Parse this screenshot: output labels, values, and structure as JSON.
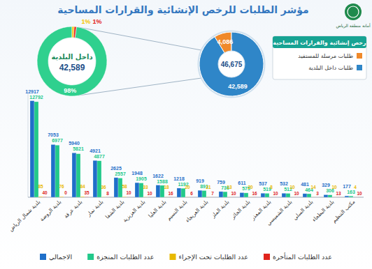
{
  "header": {
    "title": "مؤشر الطلبات للرخص الإنشائية والقرارات المساحية",
    "org": "أمانة منطقة الرياض"
  },
  "chart_data": [
    {
      "type": "pie",
      "legend_title": "رخص إنشائية والقرارات المساحية",
      "categories": [
        "طلبات مرسلة للمستفيد",
        "طلبات داخل البلدية"
      ],
      "values": [
        4086,
        42589
      ],
      "value_labels": [
        "4,086",
        "42,589"
      ],
      "colors": [
        "#f0892a",
        "#2f86c8"
      ],
      "data_labels": true,
      "center_label": "46,675",
      "legend": "right"
    },
    {
      "type": "donut",
      "title": "داخل البلدية",
      "values": [
        98,
        1,
        1
      ],
      "value_labels": [
        "98%",
        "1%",
        "1%"
      ],
      "colors": [
        "#2fd08e",
        "#f5c400",
        "#e3241b"
      ],
      "data_labels": true,
      "center_label": "42,589"
    },
    {
      "type": "bar",
      "categories": [
        "بلدية شمال الرياض",
        "بلدية الروضة",
        "بلدية عرقة",
        "بلدية نمار",
        "بلدية الشفا",
        "بلدية العزيزية",
        "بلدية العليا",
        "بلدية النسيم",
        "بلدية العريجاء",
        "بلدية الملز",
        "بلدية الحائر",
        "بلدية المعذر",
        "بلدية الشميسي",
        "بلدية السلي",
        "بلدية البطحاء",
        "مكتب التنظيم"
      ],
      "series": [
        {
          "name": "الاجمالي",
          "color": "#1f6fc9",
          "values": [
            12917,
            7053,
            5940,
            4921,
            2625,
            1948,
            1622,
            1218,
            919,
            759,
            611,
            537,
            532,
            481,
            329,
            177
          ]
        },
        {
          "name": "عدد الطلبات المنجزة",
          "color": "#22c98a",
          "values": [
            12792,
            6977,
            5821,
            4877,
            2557,
            1905,
            1588,
            1192,
            891,
            736,
            575,
            519,
            512,
            464,
            306,
            163
          ]
        },
        {
          "name": "عدد الطلبات تحت الإجراء",
          "color": "#e8b900",
          "values": [
            85,
            76,
            84,
            36,
            58,
            33,
            18,
            20,
            21,
            13,
            20,
            8,
            10,
            14,
            10,
            4
          ]
        },
        {
          "name": "عدد الطلبات المتأخرة",
          "color": "#e0241c",
          "values": [
            40,
            0,
            35,
            8,
            10,
            10,
            16,
            6,
            7,
            10,
            16,
            10,
            10,
            3,
            13,
            10
          ]
        }
      ],
      "ylim": [
        0,
        14000
      ],
      "data_labels": true,
      "tick_labels": "x",
      "legend": "bottom",
      "grid": false
    }
  ]
}
